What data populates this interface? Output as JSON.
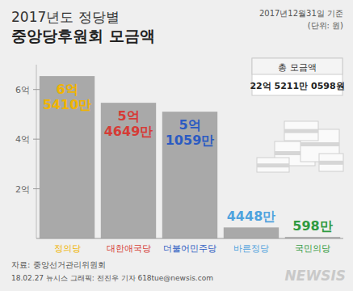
{
  "chart_data": {
    "type": "bar",
    "subtitle": "2017년도 정당별",
    "title": "중앙당후원회 모금액",
    "categories": [
      "정의당",
      "대한애국당",
      "더불어민주당",
      "바른정당",
      "국민의당"
    ],
    "values": [
      654100000,
      546490000,
      510590000,
      44480000,
      5980000
    ],
    "value_labels": [
      "6억 5410만",
      "5억 4649만",
      "5억 1059만",
      "4448만",
      "598만"
    ],
    "data_labels": true,
    "color": "#a9a9a9",
    "ylim": [
      0,
      700000000
    ],
    "yticks": [
      {
        "value": 200000000,
        "label": "2억"
      },
      {
        "value": 400000000,
        "label": "4억"
      },
      {
        "value": 600000000,
        "label": "6억"
      }
    ],
    "grid": false,
    "annotations": [
      "2017년12월31일 기준",
      "(단위: 원)",
      "총 모금액",
      "22억 5211만 0598원",
      "자료: 중앙선거관리위원회",
      "18.02.27 뉴시스 그래픽: 전진우 기자 618tue@newsis.com",
      "NEWSIS"
    ]
  }
}
